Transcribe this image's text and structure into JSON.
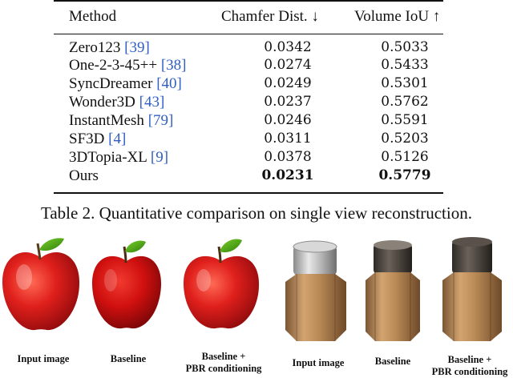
{
  "table": {
    "headers": {
      "method": "Method",
      "chamfer": "Chamfer Dist. ↓",
      "iou": "Volume IoU ↑"
    },
    "rows": [
      {
        "method": "Zero123",
        "ref": "39",
        "chamfer": "0.0342",
        "iou": "0.5033"
      },
      {
        "method": "One-2-3-45++",
        "ref": "38",
        "chamfer": "0.0274",
        "iou": "0.5433"
      },
      {
        "method": "SyncDreamer",
        "ref": "40",
        "chamfer": "0.0249",
        "iou": "0.5301"
      },
      {
        "method": "Wonder3D",
        "ref": "43",
        "chamfer": "0.0237",
        "iou": "0.5762"
      },
      {
        "method": "InstantMesh",
        "ref": "79",
        "chamfer": "0.0246",
        "iou": "0.5591"
      },
      {
        "method": "SF3D",
        "ref": "4",
        "chamfer": "0.0311",
        "iou": "0.5203"
      },
      {
        "method": "3DTopia-XL",
        "ref": "9",
        "chamfer": "0.0378",
        "iou": "0.5126"
      },
      {
        "method": "Ours",
        "ref": "",
        "chamfer": "0.0231",
        "iou": "0.5779"
      }
    ],
    "caption": "Table 2. Quantitative comparison on single view reconstruction."
  },
  "figure": {
    "apple_labels": {
      "input": "Input image",
      "baseline": "Baseline",
      "pbr_line1": "Baseline +",
      "pbr_line2": "PBR conditioning"
    },
    "jar_labels": {
      "input": "Input image",
      "baseline": "Baseline",
      "pbr_line1": "Baseline +",
      "pbr_line2": "PBR conditioning"
    },
    "colors": {
      "apple_red": "#e0201c",
      "apple_dark": "#8e0a0c",
      "leaf_green": "#46a80e",
      "jar_brown": "#b98a55",
      "metal_lid": "#b0b0b0"
    }
  }
}
